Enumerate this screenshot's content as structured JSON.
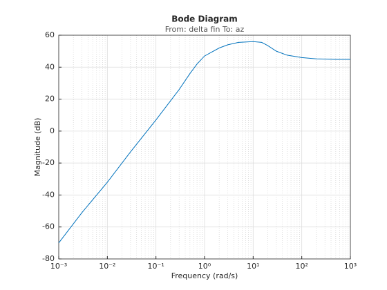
{
  "chart_data": {
    "type": "line",
    "title": "Bode Diagram",
    "subtitle": "From: delta fin  To: az",
    "x_label": "Frequency  (rad/s)",
    "y_label": "Magnitude (dB)",
    "xscale": "log",
    "grid": true,
    "minor_grid": true,
    "x": [
      0.001,
      0.003,
      0.01,
      0.03,
      0.1,
      0.2,
      0.3,
      0.5,
      0.7,
      1,
      2,
      3,
      5,
      10,
      15,
      20,
      30,
      50,
      100,
      200,
      500,
      1000
    ],
    "series": [
      {
        "name": "delta fin to az",
        "color": "#0072bd",
        "values": [
          -70,
          -51,
          -32,
          -13,
          7,
          19,
          26,
          36,
          42,
          47,
          52,
          54,
          55.5,
          56,
          55.5,
          53.5,
          50,
          47.5,
          46,
          45.2,
          44.9,
          44.9
        ]
      }
    ],
    "xlim": [
      0.001,
      1000
    ],
    "xticks": [
      {
        "value": 0.001,
        "label": "10⁻³"
      },
      {
        "value": 0.01,
        "label": "10⁻²"
      },
      {
        "value": 0.1,
        "label": "10⁻¹"
      },
      {
        "value": 1,
        "label": "10⁰"
      },
      {
        "value": 10,
        "label": "10¹"
      },
      {
        "value": 100,
        "label": "10²"
      },
      {
        "value": 1000,
        "label": "10³"
      }
    ],
    "ylim": [
      -80,
      60
    ],
    "yticks": [
      -80,
      -60,
      -40,
      -20,
      0,
      20,
      40,
      60
    ]
  }
}
